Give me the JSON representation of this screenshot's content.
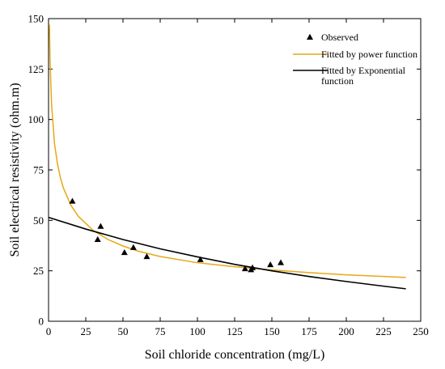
{
  "chart_data": {
    "type": "scatter",
    "title": "",
    "xlabel": "Soil chloride concentration (mg/L)",
    "ylabel": "Soil electrical resistivity (ohm.m)",
    "xlim": [
      0,
      250
    ],
    "ylim": [
      0,
      150
    ],
    "x_ticks": [
      "0",
      "25",
      "50",
      "75",
      "100",
      "125",
      "150",
      "175",
      "200",
      "225",
      "250"
    ],
    "y_ticks": [
      "0",
      "25",
      "50",
      "75",
      "100",
      "125",
      "150"
    ],
    "grid": false,
    "legend_position": "top-right",
    "series": [
      {
        "name": "Observed",
        "kind": "scatter",
        "marker": "triangle",
        "color": "#000000",
        "points": [
          [
            16,
            59.5
          ],
          [
            33,
            40.5
          ],
          [
            35,
            47
          ],
          [
            51,
            34
          ],
          [
            57,
            36.5
          ],
          [
            66,
            32
          ],
          [
            102,
            30.5
          ],
          [
            132,
            26
          ],
          [
            136,
            25.5
          ],
          [
            137,
            26.5
          ],
          [
            149,
            28
          ],
          [
            156,
            29
          ]
        ]
      },
      {
        "name": "Fitted by power function",
        "kind": "line",
        "color": "#e6a817",
        "points": [
          [
            0.6,
            147
          ],
          [
            1,
            130
          ],
          [
            2,
            108
          ],
          [
            4,
            88
          ],
          [
            6,
            78
          ],
          [
            8,
            71
          ],
          [
            10,
            66
          ],
          [
            15,
            57.5
          ],
          [
            20,
            52
          ],
          [
            30,
            45
          ],
          [
            40,
            40.5
          ],
          [
            50,
            37.3
          ],
          [
            60,
            34.8
          ],
          [
            75,
            32.1
          ],
          [
            100,
            29
          ],
          [
            125,
            27
          ],
          [
            150,
            25.4
          ],
          [
            175,
            24.1
          ],
          [
            200,
            23
          ],
          [
            225,
            22.2
          ],
          [
            240,
            21.7
          ]
        ]
      },
      {
        "name": "Fitted by Exponential function",
        "kind": "line",
        "color": "#000000",
        "points": [
          [
            0,
            51.5
          ],
          [
            25,
            45.7
          ],
          [
            50,
            40.5
          ],
          [
            75,
            35.9
          ],
          [
            100,
            31.9
          ],
          [
            125,
            28.2
          ],
          [
            150,
            25
          ],
          [
            175,
            22.2
          ],
          [
            200,
            19.7
          ],
          [
            225,
            17.4
          ],
          [
            240,
            16.1
          ]
        ]
      }
    ]
  }
}
